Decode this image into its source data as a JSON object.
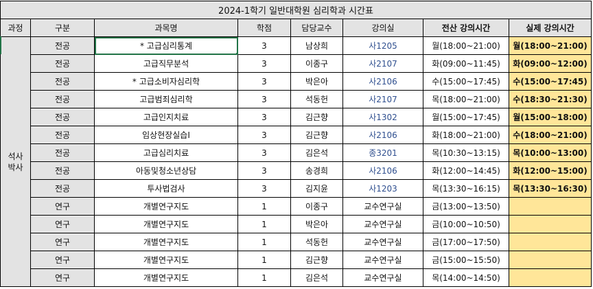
{
  "sheet": {
    "title": "2024-1학기 일반대학원 심리학과 시간표",
    "headers": [
      "과정",
      "구분",
      "과목명",
      "학점",
      "담당교수",
      "강의실",
      "전산 강의시간",
      "실제 강의시간"
    ],
    "track_label": [
      "석사",
      "박사"
    ],
    "colors": {
      "header_bg": "#e3e3e3",
      "actual_time_bg": "#ffe699",
      "selection": "#217346",
      "room_text": "#2f4f8f"
    },
    "selected_cell": "과목명 row 1",
    "rows": [
      {
        "type": "전공",
        "course": "* 고급심리통계",
        "credits": "3",
        "professor": "남상희",
        "room": "사1205",
        "system_time": "월(18:00~21:00)",
        "actual_time": "월(18:00~21:00)"
      },
      {
        "type": "전공",
        "course": "고급직무분석",
        "credits": "3",
        "professor": "이종구",
        "room": "사2107",
        "system_time": "화(09:00~11:45)",
        "actual_time": "화(09:00~12:00)"
      },
      {
        "type": "전공",
        "course": "* 고급소비자심리학",
        "credits": "3",
        "professor": "박은아",
        "room": "사2106",
        "system_time": "수(15:00~17:45)",
        "actual_time": "수(15:00~17:45)"
      },
      {
        "type": "전공",
        "course": "고급범죄심리학",
        "credits": "3",
        "professor": "석동헌",
        "room": "사2107",
        "system_time": "목(18:00~21:00)",
        "actual_time": "수(18:30~21:30)"
      },
      {
        "type": "전공",
        "course": "고급인지치료",
        "credits": "3",
        "professor": "김근향",
        "room": "사1302",
        "system_time": "월(15:00~17:45)",
        "actual_time": "월(15:00~18:00)"
      },
      {
        "type": "전공",
        "course": "임상현장실습Ⅰ",
        "credits": "3",
        "professor": "김근향",
        "room": "사2106",
        "system_time": "화(18:00~21:00)",
        "actual_time": "수(18:00~21:00)"
      },
      {
        "type": "전공",
        "course": "고급심리치료",
        "credits": "3",
        "professor": "김은석",
        "room": "종3201",
        "system_time": "목(10:30~13:15)",
        "actual_time": "목(10:00~13:00)"
      },
      {
        "type": "전공",
        "course": "아동및청소년상담",
        "credits": "3",
        "professor": "송경희",
        "room": "사2106",
        "system_time": "화(12:00~14:45)",
        "actual_time": "화(12:00~15:00)"
      },
      {
        "type": "전공",
        "course": "투사법검사",
        "credits": "3",
        "professor": "김지윤",
        "room": "사1203",
        "system_time": "목(13:30~16:15)",
        "actual_time": "목(13:30~16:30)"
      },
      {
        "type": "연구",
        "course": "개별연구지도",
        "credits": "1",
        "professor": "이종구",
        "room": "교수연구실",
        "system_time": "금(13:00~13:50)",
        "actual_time": ""
      },
      {
        "type": "연구",
        "course": "개별연구지도",
        "credits": "1",
        "professor": "박은아",
        "room": "교수연구실",
        "system_time": "금(10:00~10:50)",
        "actual_time": ""
      },
      {
        "type": "연구",
        "course": "개별연구지도",
        "credits": "1",
        "professor": "석동헌",
        "room": "교수연구실",
        "system_time": "금(17:00~17:50)",
        "actual_time": ""
      },
      {
        "type": "연구",
        "course": "개별연구지도",
        "credits": "1",
        "professor": "김근향",
        "room": "교수연구실",
        "system_time": "금(15:00~15:50)",
        "actual_time": ""
      },
      {
        "type": "연구",
        "course": "개별연구지도",
        "credits": "1",
        "professor": "김은석",
        "room": "교수연구실",
        "system_time": "목(14:00~14:50)",
        "actual_time": ""
      }
    ]
  }
}
